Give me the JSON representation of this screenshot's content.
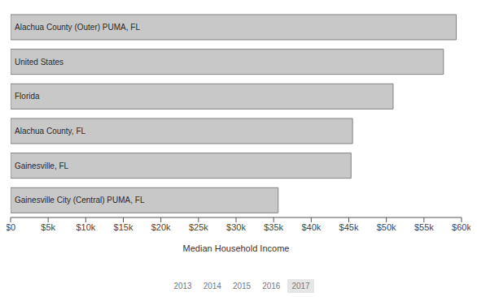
{
  "chart_data": {
    "type": "bar",
    "orientation": "horizontal",
    "categories": [
      "Alachua County (Outer) PUMA, FL",
      "United States",
      "Florida",
      "Alachua County, FL",
      "Gainesville, FL",
      "Gainesville City (Central) PUMA, FL"
    ],
    "values": [
      59300,
      57600,
      50900,
      45500,
      45300,
      35600
    ],
    "color": "#c8c8c9",
    "x_label": "Median Household Income",
    "xlim": [
      0,
      60000
    ],
    "xticks": [
      {
        "value": 0,
        "label": "$0"
      },
      {
        "value": 5000,
        "label": "$5k"
      },
      {
        "value": 10000,
        "label": "$10k"
      },
      {
        "value": 15000,
        "label": "$15k"
      },
      {
        "value": 20000,
        "label": "$20k"
      },
      {
        "value": 25000,
        "label": "$25k"
      },
      {
        "value": 30000,
        "label": "$30k"
      },
      {
        "value": 35000,
        "label": "$35k"
      },
      {
        "value": 40000,
        "label": "$40k"
      },
      {
        "value": 45000,
        "label": "$45k"
      },
      {
        "value": 50000,
        "label": "$50k"
      },
      {
        "value": 55000,
        "label": "$55k"
      },
      {
        "value": 60000,
        "label": "$60k"
      }
    ],
    "grid": false,
    "annotations": [
      "2013",
      "2014",
      "2015",
      "2016",
      "2017"
    ]
  }
}
